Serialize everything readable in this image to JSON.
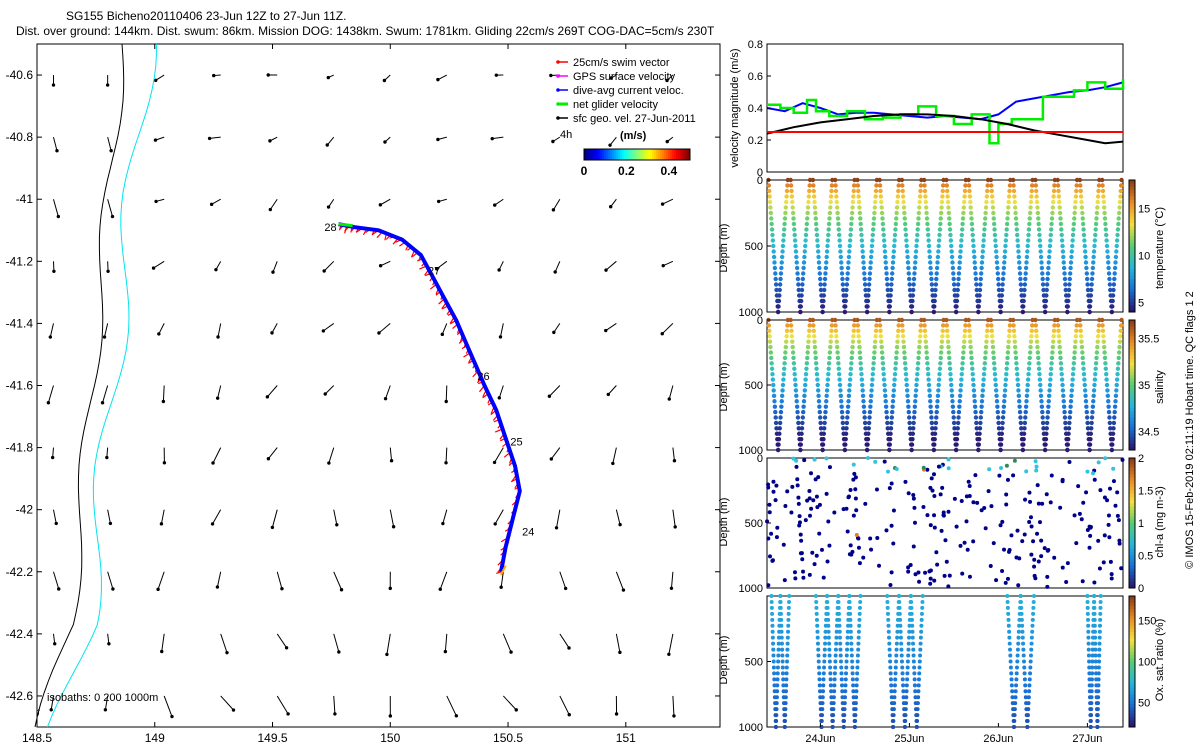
{
  "title_lines": [
    "SG155 Bicheno20110406 23-Jun 12Z to 27-Jun 11Z.",
    "Dist. over ground: 144km. Dist. swum: 86km. Mission DOG: 1438km. Swum: 1781km. Gliding 22cm/s 269T COG-DAC=5cm/s 230T"
  ],
  "side_label": "© IMOS 15-Feb-2019 02:11:19 Hobart time. QC flags 1  2",
  "colors": {
    "swim_vector": "#ff0000",
    "gps_velocity": "#ff00ff",
    "dac_velocity": "#0000ff",
    "net_velocity": "#00ee00",
    "geo_velocity": "#000000",
    "isobath_0": "#000000",
    "isobath_200": "#00e5ee"
  },
  "chart_data": [
    {
      "id": "map",
      "type": "scatter",
      "xlim": [
        148.5,
        151.4
      ],
      "ylim": [
        -42.7,
        -40.5
      ],
      "xticks": [
        "148.5",
        "149",
        "149.5",
        "150",
        "150.5",
        "151"
      ],
      "yticks": [
        "-40.6",
        "-40.8",
        "-41",
        "-41.2",
        "-41.4",
        "-41.6",
        "-41.8",
        "-42",
        "-42.2",
        "-42.4",
        "-42.6"
      ],
      "legend": {
        "position": "top-right",
        "entries": [
          "25cm/s swim vector",
          "GPS surface velocity",
          "dive-avg current veloc.",
          "net glider velocity",
          "sfc geo. vel. 27-Jun-2011"
        ],
        "scale_label": "4h"
      },
      "colorbar": {
        "label": "(m/s)",
        "ticks": [
          "0",
          "0.2",
          "0.4"
        ],
        "range": [
          0,
          0.5
        ]
      },
      "isobath_label": "isobaths: 0   200  1000m",
      "track": {
        "lon": [
          150.47,
          150.49,
          150.52,
          150.55,
          150.53,
          150.49,
          150.45,
          150.4,
          150.36,
          150.32,
          150.28,
          150.23,
          150.18,
          150.13,
          150.05,
          149.95,
          149.85,
          149.78
        ],
        "lat": [
          -42.2,
          -42.12,
          -42.03,
          -41.94,
          -41.86,
          -41.77,
          -41.68,
          -41.6,
          -41.53,
          -41.46,
          -41.39,
          -41.32,
          -41.25,
          -41.18,
          -41.13,
          -41.1,
          -41.09,
          -41.08
        ]
      },
      "day_labels": [
        {
          "text": "28",
          "lon": 149.72,
          "lat": -41.09
        },
        {
          "text": "27",
          "lon": 150.16,
          "lat": -41.23
        },
        {
          "text": "26",
          "lon": 150.37,
          "lat": -41.57
        },
        {
          "text": "25",
          "lon": 150.51,
          "lat": -41.78
        },
        {
          "text": "24",
          "lon": 150.56,
          "lat": -42.07
        }
      ],
      "geo_velocity_field": {
        "lon": [
          148.57,
          148.8,
          149.04,
          149.28,
          149.52,
          149.76,
          150.0,
          150.24,
          150.48,
          150.72,
          150.96,
          151.2
        ],
        "lat": [
          -40.6,
          -40.8,
          -41.0,
          -41.2,
          -41.4,
          -41.6,
          -41.8,
          -42.0,
          -42.2,
          -42.4,
          -42.6
        ]
      }
    },
    {
      "id": "velocity",
      "type": "line",
      "ylabel": "velocity magnitude (m/s)",
      "ylim": [
        0,
        0.8
      ],
      "yticks": [
        "0",
        "0.2",
        "0.4",
        "0.6",
        "0.8"
      ],
      "xlim": [
        0,
        4
      ],
      "series": [
        {
          "color": "blue",
          "x": [
            0,
            0.2,
            0.4,
            0.6,
            0.8,
            1.0,
            1.2,
            1.4,
            1.6,
            1.8,
            2.0,
            2.2,
            2.4,
            2.6,
            2.8,
            3.0,
            3.2,
            3.4,
            3.6,
            3.8,
            4.0
          ],
          "y": [
            0.4,
            0.38,
            0.43,
            0.4,
            0.36,
            0.37,
            0.37,
            0.36,
            0.35,
            0.34,
            0.35,
            0.34,
            0.33,
            0.36,
            0.44,
            0.46,
            0.48,
            0.5,
            0.51,
            0.53,
            0.56
          ]
        },
        {
          "color": "green",
          "x": [
            0,
            0.15,
            0.3,
            0.45,
            0.55,
            0.7,
            0.9,
            1.1,
            1.3,
            1.5,
            1.7,
            1.9,
            2.1,
            2.3,
            2.5,
            2.6,
            2.75,
            2.9,
            3.1,
            3.3,
            3.45,
            3.6,
            3.8,
            4.0
          ],
          "y": [
            0.42,
            0.4,
            0.37,
            0.45,
            0.38,
            0.35,
            0.38,
            0.33,
            0.34,
            0.36,
            0.41,
            0.35,
            0.3,
            0.36,
            0.18,
            0.3,
            0.33,
            0.33,
            0.47,
            0.47,
            0.51,
            0.56,
            0.52,
            0.58
          ]
        },
        {
          "color": "black",
          "x": [
            0,
            0.3,
            0.6,
            0.9,
            1.2,
            1.5,
            1.8,
            2.1,
            2.4,
            2.7,
            3.0,
            3.3,
            3.6,
            3.8,
            4.0
          ],
          "y": [
            0.24,
            0.28,
            0.31,
            0.33,
            0.35,
            0.36,
            0.36,
            0.35,
            0.33,
            0.3,
            0.26,
            0.23,
            0.2,
            0.18,
            0.19
          ]
        },
        {
          "color": "red",
          "x": [
            0,
            4
          ],
          "y": [
            0.25,
            0.25
          ]
        }
      ]
    },
    {
      "id": "temperature",
      "type": "scatter",
      "ylabel": "Depth (m)",
      "ylim": [
        1000,
        0
      ],
      "yticks": [
        "0",
        "500",
        "1000"
      ],
      "profiles": 16,
      "max_depth": 1000,
      "colorbar": {
        "label": "temperature (°C)",
        "ticks": [
          "5",
          "10",
          "15"
        ],
        "range": [
          4,
          18
        ]
      }
    },
    {
      "id": "salinity",
      "type": "scatter",
      "ylabel": "Depth (m)",
      "ylim": [
        1000,
        0
      ],
      "yticks": [
        "0",
        "500",
        "1000"
      ],
      "profiles": 16,
      "max_depth": 1000,
      "colorbar": {
        "label": "salinity",
        "ticks": [
          "34.5",
          "35",
          "35.5"
        ],
        "range": [
          34.3,
          35.7
        ]
      }
    },
    {
      "id": "chla",
      "type": "scatter",
      "ylabel": "Depth (m)",
      "ylim": [
        1000,
        0
      ],
      "yticks": [
        "0",
        "500",
        "1000"
      ],
      "profiles": 16,
      "max_depth": 1000,
      "colorbar": {
        "label": "chl-a (mg m-3)",
        "ticks": [
          "0",
          "0.5",
          "1",
          "1.5",
          "2"
        ],
        "range": [
          0,
          2
        ]
      }
    },
    {
      "id": "oxygen",
      "type": "scatter",
      "ylabel": "Depth (m)",
      "ylim": [
        1000,
        0
      ],
      "yticks": [
        "500",
        "1000"
      ],
      "xticks": [
        "24Jun",
        "25Jun",
        "26Jun",
        "27Jun"
      ],
      "profile_groups": [
        [
          0.05,
          0.25
        ],
        [
          0.55,
          1.05
        ],
        [
          1.35,
          1.75
        ],
        [
          2.7,
          3.0
        ],
        [
          3.6,
          3.75
        ]
      ],
      "max_depth": 1000,
      "colorbar": {
        "label": "Ox. sat. ratio (%)",
        "ticks": [
          "50",
          "100",
          "150"
        ],
        "range": [
          20,
          180
        ]
      }
    }
  ]
}
